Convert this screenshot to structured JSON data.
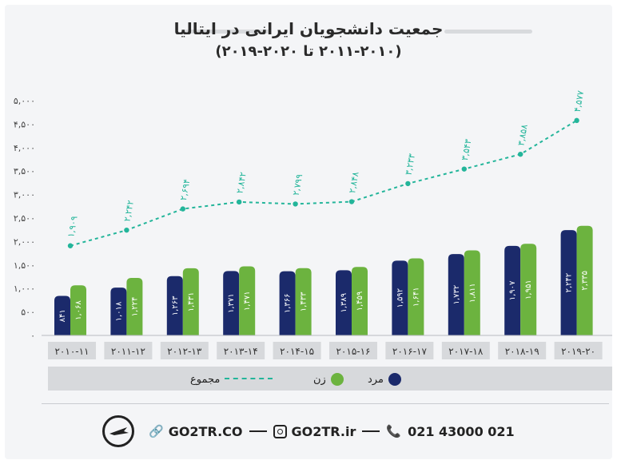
{
  "title": "جمعیت دانشجویان ایرانی در ایتالیا",
  "subtitle": "(۲۰۱۱-۲۰۱۰ تا ۲۰۲۰-۲۰۱۹)",
  "legend": {
    "male": "مرد",
    "female": "زن",
    "total": "مجموع"
  },
  "footer": {
    "site": "GO2TR.CO",
    "instagram": "GO2TR.ir",
    "phone": "021 43000 021"
  },
  "colors": {
    "male": "#1b2a6b",
    "female": "#6cb33f",
    "total": "#23b59a",
    "text": "#2a2a2a"
  },
  "icons": {
    "link": "link-icon",
    "instagram": "instagram-icon",
    "phone": "phone-icon",
    "logo": "plane-logo-icon"
  },
  "chart_data": {
    "type": "bar",
    "title": "جمعیت دانشجویان ایرانی در ایتالیا",
    "categories": [
      "2010-11",
      "2011-12",
      "2012-13",
      "2013-14",
      "2014-15",
      "2015-16",
      "2016-17",
      "2017-18",
      "2018-19",
      "2019-20"
    ],
    "category_labels": [
      "۲۰۱۰-۱۱",
      "۲۰۱۱-۱۲",
      "۲۰۱۲-۱۳",
      "۲۰۱۳-۱۴",
      "۲۰۱۴-۱۵",
      "۲۰۱۵-۱۶",
      "۲۰۱۶-۱۷",
      "۲۰۱۷-۱۸",
      "۲۰۱۸-۱۹",
      "۲۰۱۹-۲۰"
    ],
    "series": [
      {
        "name": "مرد",
        "values": [
          841,
          1018,
          1263,
          1371,
          1366,
          1389,
          1592,
          1732,
          1907,
          2242
        ],
        "labels": [
          "۸۴۱",
          "۱,۰۱۸",
          "۱,۲۶۳",
          "۱,۳۷۱",
          "۱,۳۶۶",
          "۱,۳۸۹",
          "۱,۵۹۲",
          "۱,۷۳۲",
          "۱,۹۰۷",
          "۲,۲۴۲"
        ]
      },
      {
        "name": "زن",
        "values": [
          1068,
          1224,
          1431,
          1471,
          1433,
          1459,
          1641,
          1811,
          1951,
          2335
        ],
        "labels": [
          "۱,۰۶۸",
          "۱,۲۲۴",
          "۱,۴۳۱",
          "۱,۴۷۱",
          "۱,۴۳۳",
          "۱,۴۵۹",
          "۱,۶۴۱",
          "۱,۸۱۱",
          "۱,۹۵۱",
          "۲,۳۳۵"
        ]
      },
      {
        "name": "مجموع",
        "type": "line",
        "values": [
          1909,
          2242,
          2694,
          2842,
          2799,
          2848,
          3233,
          3543,
          3858,
          4577
        ],
        "labels": [
          "۱,۹۰۹",
          "۲,۲۴۲",
          "۲,۶۹۴",
          "۲,۸۴۲",
          "۲,۷۹۹",
          "۲,۸۴۸",
          "۳,۲۳۳",
          "۳,۵۴۳",
          "۳,۸۵۸",
          "۴,۵۷۷"
        ]
      }
    ],
    "ylim": [
      0,
      5000
    ],
    "yticks": [
      0,
      500,
      1000,
      1500,
      2000,
      2500,
      3000,
      3500,
      4000,
      4500,
      5000
    ],
    "ytick_labels": [
      "۰",
      "۵۰۰",
      "۱,۰۰۰",
      "۱,۵۰۰",
      "۲,۰۰۰",
      "۲,۵۰۰",
      "۳,۰۰۰",
      "۳,۵۰۰",
      "۴,۰۰۰",
      "۴,۵۰۰",
      "۵,۰۰۰"
    ],
    "grid": false,
    "legend_position": "bottom"
  }
}
